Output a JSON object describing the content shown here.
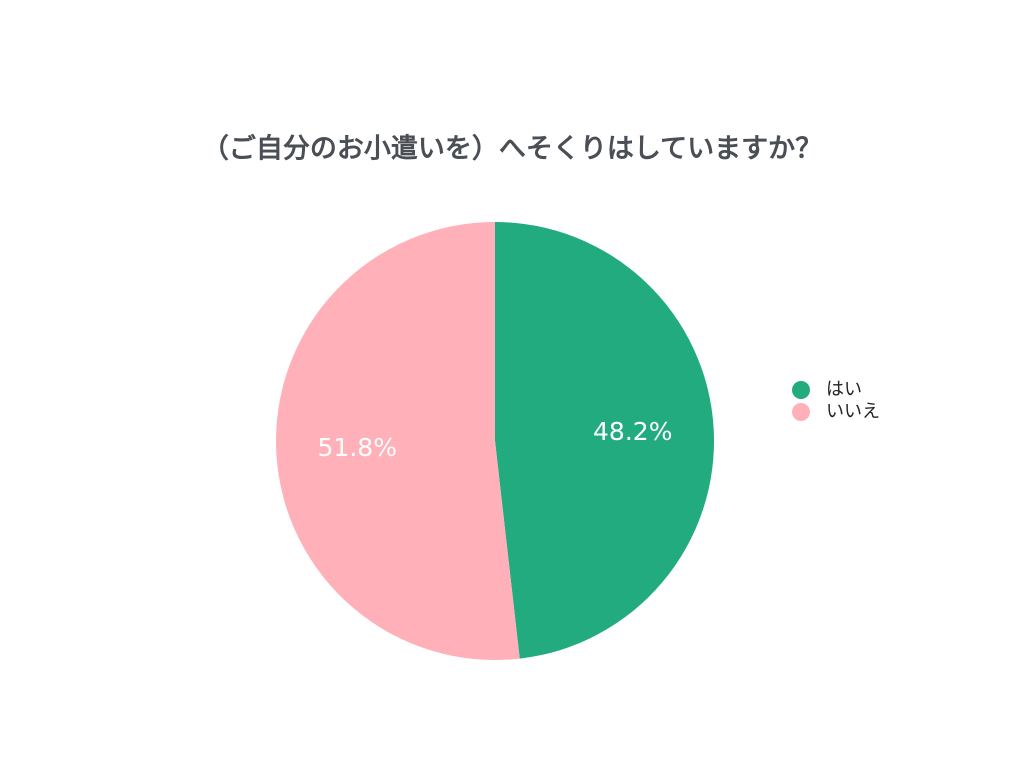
{
  "chart_data": {
    "type": "pie",
    "title": "（ご自分のお小遣いを）へそくりはしていますか？",
    "categories": [
      "はい",
      "いいえ"
    ],
    "values": [
      48.2,
      51.8
    ],
    "value_labels": [
      "48.2%",
      "51.8%"
    ],
    "colors": [
      "#22ab7e",
      "#ffb0b8"
    ],
    "legend": "right"
  }
}
